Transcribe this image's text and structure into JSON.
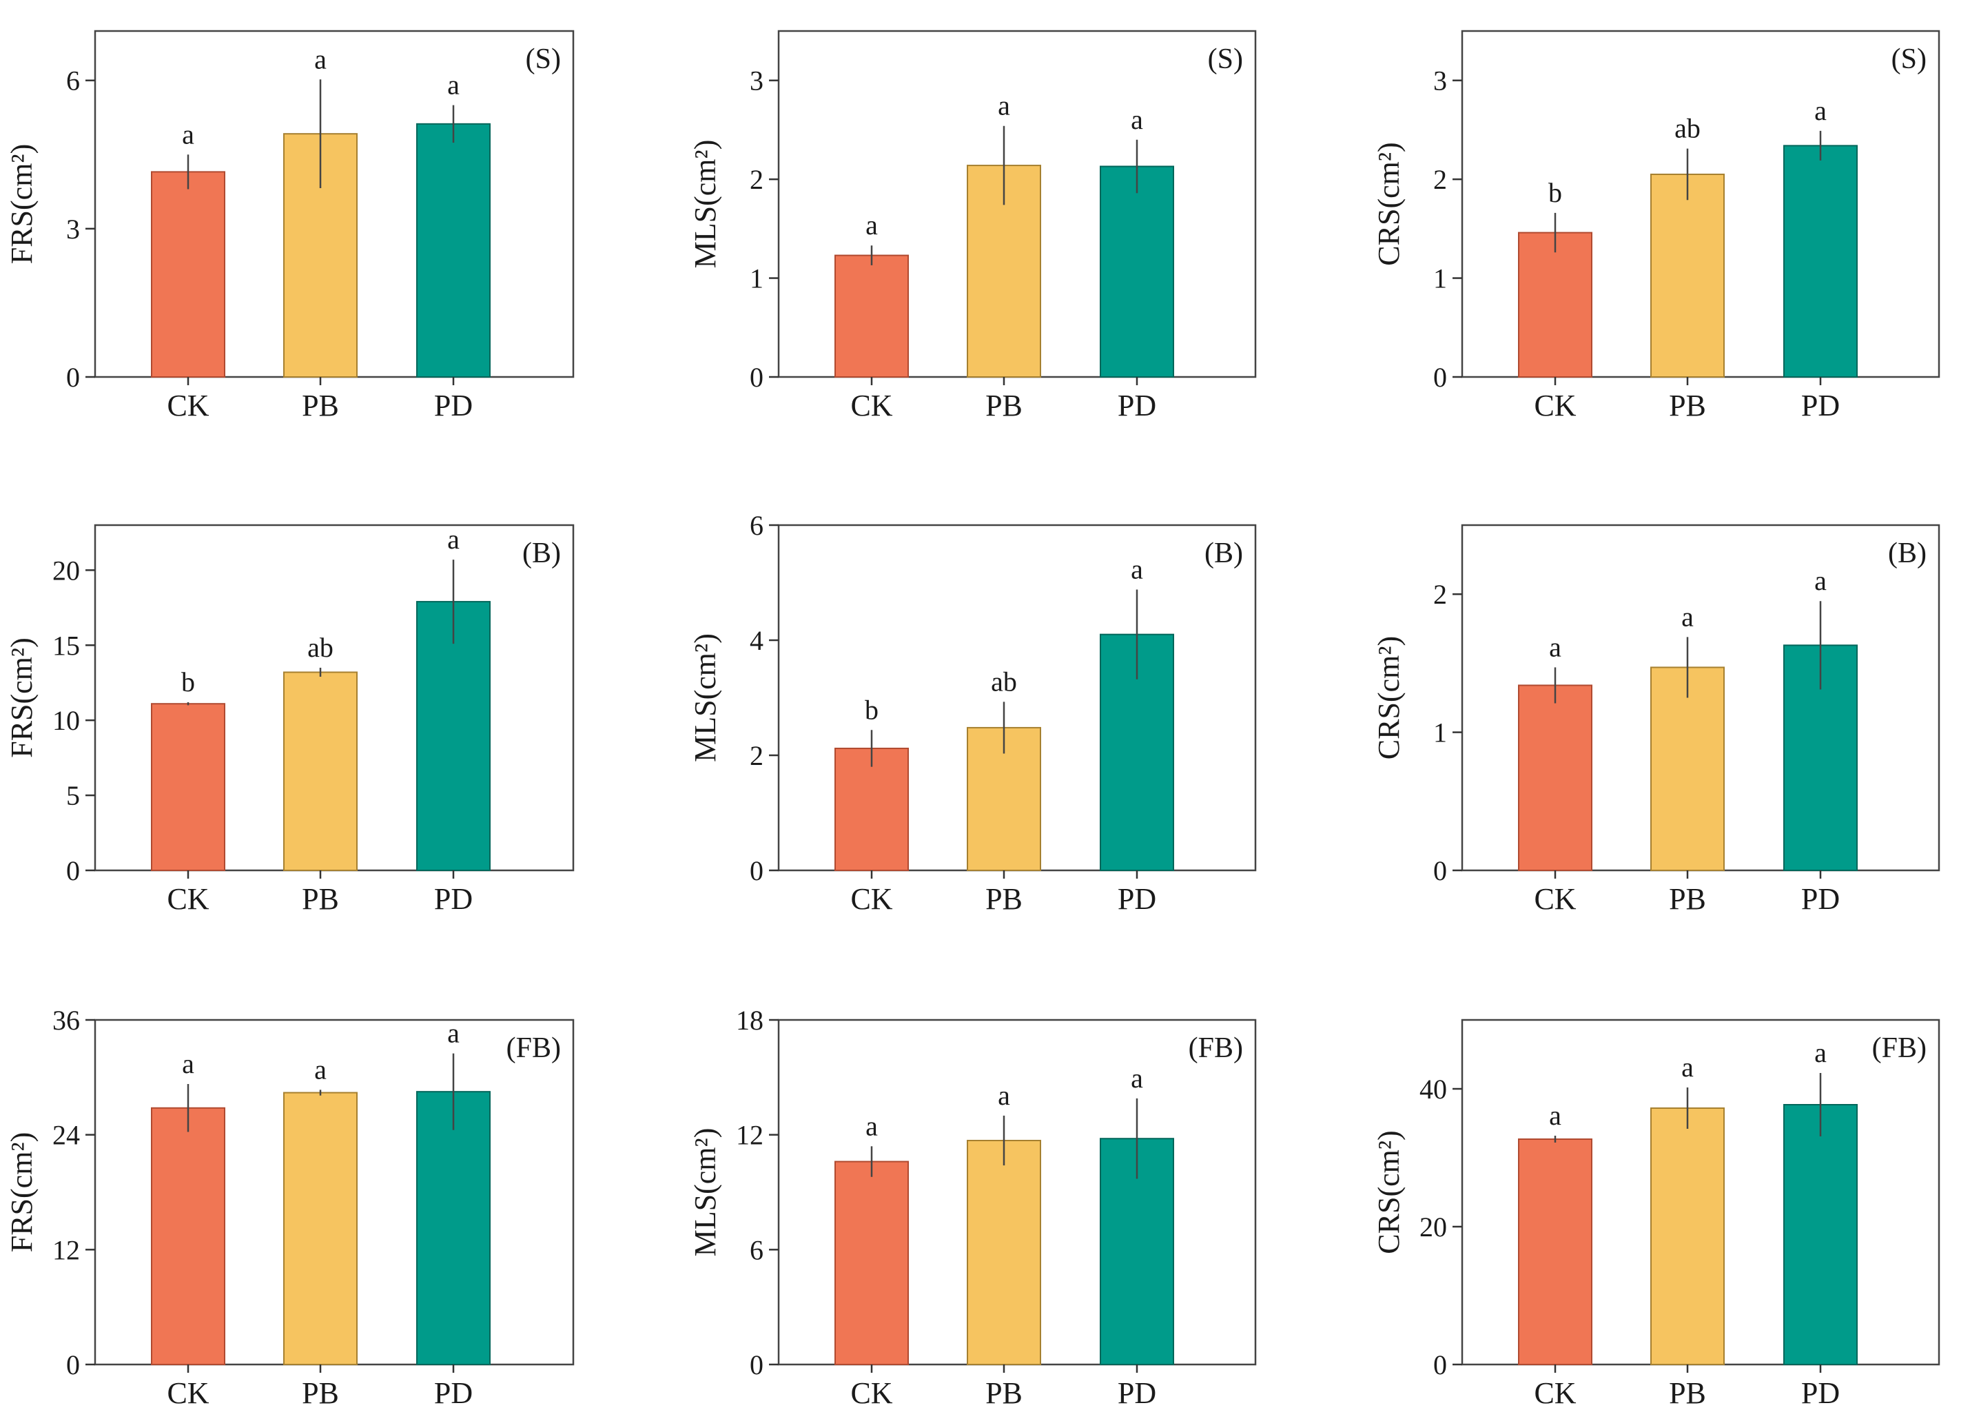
{
  "colors": {
    "CK": "#F07654",
    "PB": "#F6C460",
    "PD": "#009B8A",
    "CK_edge": "#B04A30",
    "PB_edge": "#A68030",
    "PD_edge": "#00665A"
  },
  "chart_data": [
    {
      "type": "bar",
      "id": "S-FRS",
      "label": "(S)",
      "ylabel": "FRS(cm²)",
      "ylim": [
        0,
        7
      ],
      "yticks": [
        0,
        3,
        6
      ],
      "categories": [
        "CK",
        "PB",
        "PD"
      ],
      "values": [
        4.15,
        4.92,
        5.12
      ],
      "errors": [
        0.35,
        1.1,
        0.38
      ],
      "letters": [
        "a",
        "a",
        "a"
      ]
    },
    {
      "type": "bar",
      "id": "S-MLS",
      "label": "(S)",
      "ylabel": "MLS(cm²)",
      "ylim": [
        0,
        3.5
      ],
      "yticks": [
        0,
        1,
        2,
        3
      ],
      "categories": [
        "CK",
        "PB",
        "PD"
      ],
      "values": [
        1.23,
        2.14,
        2.13
      ],
      "errors": [
        0.1,
        0.4,
        0.27
      ],
      "letters": [
        "a",
        "a",
        "a"
      ]
    },
    {
      "type": "bar",
      "id": "S-CRS",
      "label": "(S)",
      "ylabel": "CRS(cm²)",
      "ylim": [
        0,
        3.5
      ],
      "yticks": [
        0,
        1,
        2,
        3
      ],
      "categories": [
        "CK",
        "PB",
        "PD"
      ],
      "values": [
        1.46,
        2.05,
        2.34
      ],
      "errors": [
        0.2,
        0.26,
        0.15
      ],
      "letters": [
        "b",
        "ab",
        "a"
      ]
    },
    {
      "type": "bar",
      "id": "B-FRS",
      "label": "(B)",
      "ylabel": "FRS(cm²)",
      "ylim": [
        0,
        23
      ],
      "yticks": [
        0,
        5,
        10,
        15,
        20
      ],
      "categories": [
        "CK",
        "PB",
        "PD"
      ],
      "values": [
        11.1,
        13.2,
        17.9
      ],
      "errors": [
        0.1,
        0.3,
        2.8
      ],
      "letters": [
        "b",
        "ab",
        "a"
      ]
    },
    {
      "type": "bar",
      "id": "B-MLS",
      "label": "(B)",
      "ylabel": "MLS(cm²)",
      "ylim": [
        0,
        6
      ],
      "yticks": [
        0,
        2,
        4,
        6
      ],
      "categories": [
        "CK",
        "PB",
        "PD"
      ],
      "values": [
        2.12,
        2.48,
        4.1
      ],
      "errors": [
        0.32,
        0.45,
        0.78
      ],
      "letters": [
        "b",
        "ab",
        "a"
      ]
    },
    {
      "type": "bar",
      "id": "B-CRS",
      "label": "(B)",
      "ylabel": "CRS(cm²)",
      "ylim": [
        0,
        2.5
      ],
      "yticks": [
        0,
        1,
        2
      ],
      "categories": [
        "CK",
        "PB",
        "PD"
      ],
      "values": [
        1.34,
        1.47,
        1.63
      ],
      "errors": [
        0.13,
        0.22,
        0.32
      ],
      "letters": [
        "a",
        "a",
        "a"
      ]
    },
    {
      "type": "bar",
      "id": "FB-FRS",
      "label": "(FB)",
      "ylabel": "FRS(cm²)",
      "ylim": [
        0,
        36
      ],
      "yticks": [
        0,
        12,
        24,
        36
      ],
      "categories": [
        "CK",
        "PB",
        "PD"
      ],
      "values": [
        26.8,
        28.4,
        28.5
      ],
      "errors": [
        2.5,
        0.3,
        4.0
      ],
      "letters": [
        "a",
        "a",
        "a"
      ]
    },
    {
      "type": "bar",
      "id": "FB-MLS",
      "label": "(FB)",
      "ylabel": "MLS(cm²)",
      "ylim": [
        0,
        18
      ],
      "yticks": [
        0,
        6,
        12,
        18
      ],
      "categories": [
        "CK",
        "PB",
        "PD"
      ],
      "values": [
        10.6,
        11.7,
        11.8
      ],
      "errors": [
        0.8,
        1.3,
        2.1
      ],
      "letters": [
        "a",
        "a",
        "a"
      ]
    },
    {
      "type": "bar",
      "id": "FB-CRS",
      "label": "(FB)",
      "ylabel": "CRS(cm²)",
      "ylim": [
        0,
        50
      ],
      "yticks": [
        0,
        20,
        40
      ],
      "categories": [
        "CK",
        "PB",
        "PD"
      ],
      "values": [
        32.7,
        37.2,
        37.7
      ],
      "errors": [
        0.5,
        3.0,
        4.6
      ],
      "letters": [
        "a",
        "a",
        "a"
      ]
    }
  ]
}
